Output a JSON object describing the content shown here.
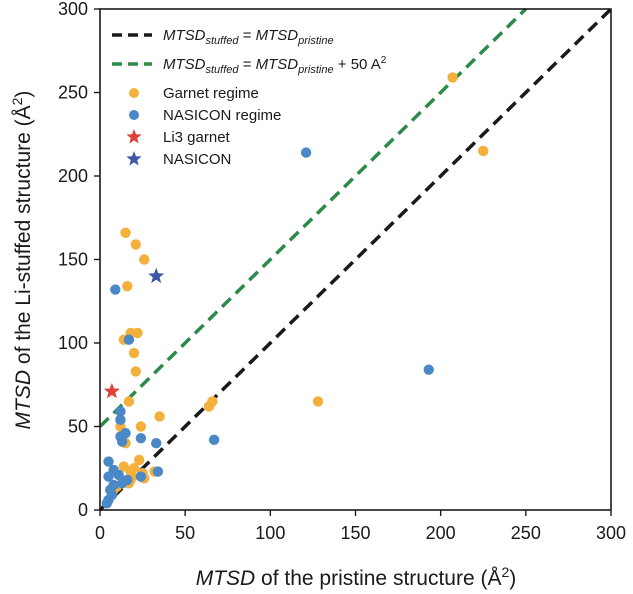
{
  "chart_data": {
    "type": "scatter",
    "title": "",
    "xlabel": {
      "italic": "MTSD",
      "rest": " of the pristine structure (Å",
      "sup": "2",
      "end": ")"
    },
    "ylabel": {
      "italic": "MTSD",
      "rest": " of the Li-stuffed structure (Å",
      "sup": "2",
      "end": ")"
    },
    "xlim": [
      0,
      300
    ],
    "ylim": [
      0,
      300
    ],
    "x_ticks": [
      0,
      50,
      100,
      150,
      200,
      250,
      300
    ],
    "y_ticks": [
      0,
      50,
      100,
      150,
      200,
      250,
      300
    ],
    "grid": false,
    "legend_position": "top-left",
    "colors": {
      "garnet": "#f4b03c",
      "nasicon": "#4a88c8",
      "li3_garnet": "#e0403a",
      "nasicon_star": "#3f57a8",
      "identity_line": "#1a1a1a",
      "offset_line": "#2c8a4a",
      "axis": "#1a1a1a"
    },
    "lines": [
      {
        "name": "identity",
        "label_main": "MTSD",
        "label_sub": "stuffed",
        "label_eq": " = ",
        "label_main2": "MTSD",
        "label_sub2": "pristine",
        "label_extra": "",
        "x": [
          0,
          300
        ],
        "y": [
          0,
          300
        ]
      },
      {
        "name": "offset",
        "label_main": "MTSD",
        "label_sub": "stuffed",
        "label_eq": " = ",
        "label_main2": "MTSD",
        "label_sub2": "pristine",
        "label_extra": " + 50 A",
        "label_sup": "2",
        "x": [
          0,
          250
        ],
        "y": [
          50,
          300
        ]
      }
    ],
    "series": [
      {
        "name": "Garnet regime",
        "marker": "circle",
        "points": [
          [
            207,
            259
          ],
          [
            225,
            215
          ],
          [
            15,
            166
          ],
          [
            21,
            159
          ],
          [
            26,
            150
          ],
          [
            16,
            134
          ],
          [
            18,
            106
          ],
          [
            22,
            106
          ],
          [
            14,
            102
          ],
          [
            20,
            94
          ],
          [
            21,
            83
          ],
          [
            17,
            65
          ],
          [
            128,
            65
          ],
          [
            66,
            65
          ],
          [
            64,
            62
          ],
          [
            35,
            56
          ],
          [
            12,
            50
          ],
          [
            24,
            50
          ],
          [
            15,
            40
          ],
          [
            23,
            30
          ],
          [
            20,
            25
          ],
          [
            14,
            26
          ],
          [
            25,
            22
          ],
          [
            19,
            20
          ],
          [
            18,
            18
          ],
          [
            17,
            16
          ],
          [
            32,
            23
          ],
          [
            10,
            14
          ],
          [
            8,
            12
          ],
          [
            18,
            23
          ],
          [
            26,
            19
          ]
        ]
      },
      {
        "name": "NASICON regime",
        "marker": "circle",
        "points": [
          [
            121,
            214
          ],
          [
            9,
            132
          ],
          [
            17,
            102
          ],
          [
            193,
            84
          ],
          [
            12,
            59
          ],
          [
            12,
            54
          ],
          [
            15,
            46
          ],
          [
            12,
            44
          ],
          [
            13,
            41
          ],
          [
            33,
            40
          ],
          [
            67,
            42
          ],
          [
            24,
            43
          ],
          [
            5,
            29
          ],
          [
            8,
            24
          ],
          [
            5,
            20
          ],
          [
            11,
            21
          ],
          [
            34,
            23
          ],
          [
            13,
            16
          ],
          [
            8,
            15
          ],
          [
            6,
            12
          ],
          [
            7,
            9
          ],
          [
            5,
            6
          ],
          [
            4,
            4
          ],
          [
            24,
            20
          ],
          [
            16,
            18
          ]
        ]
      },
      {
        "name": "Li3 garnet",
        "marker": "star",
        "points": [
          [
            7,
            71
          ]
        ]
      },
      {
        "name": "NASICON",
        "marker": "star",
        "points": [
          [
            33,
            140
          ]
        ]
      }
    ]
  }
}
